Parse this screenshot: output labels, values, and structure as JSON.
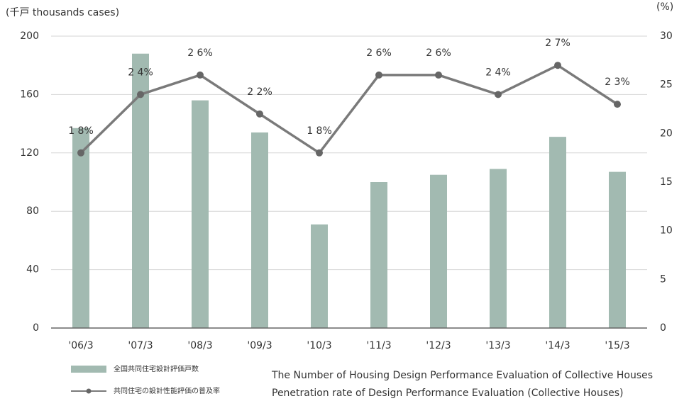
{
  "chart_data": {
    "type": "bar_line",
    "y_label": "(千戸 thousands cases)",
    "y2_label": "(%)",
    "categories": [
      "'06/3",
      "'07/3",
      "'08/3",
      "'09/3",
      "'10/3",
      "'11/3",
      "'12/3",
      "'13/3",
      "'14/3",
      "'15/3"
    ],
    "series": [
      {
        "name": "全国共同住宅設計評価戸数",
        "description": "The Number of Housing Design Performance Evaluation of Collective Houses",
        "type": "bar",
        "color": "#a2bab1",
        "values": [
          137,
          188,
          156,
          134,
          71,
          100,
          105,
          109,
          131,
          107
        ]
      },
      {
        "name": "共同住宅の設計性能評価の普及率",
        "description": "Penetration rate of Design Performance Evaluation (Collective Houses)",
        "type": "line",
        "axis": "y2",
        "color": "#7a7a7a",
        "values": [
          18,
          24,
          26,
          22,
          18,
          26,
          26,
          24,
          27,
          23
        ],
        "value_labels": [
          "1 8%",
          "2 4%",
          "2 6%",
          "2 2%",
          "1 8%",
          "2 6%",
          "2 6%",
          "2 4%",
          "2 7%",
          "2 3%"
        ]
      }
    ],
    "ylim": [
      0,
      200
    ],
    "yticks": [
      0,
      40,
      80,
      120,
      160,
      200
    ],
    "y2lim": [
      0,
      30
    ],
    "y2ticks": [
      0,
      5,
      10,
      15,
      20,
      25,
      30
    ],
    "grid": true
  }
}
